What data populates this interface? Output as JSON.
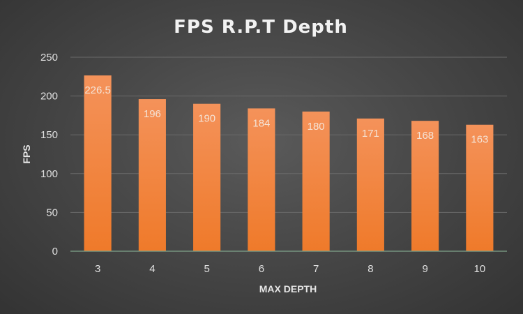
{
  "chart_data": {
    "type": "bar",
    "title": "FPS R.P.T Depth",
    "xlabel": "MAX DEPTH",
    "ylabel": "FPS",
    "categories": [
      "3",
      "4",
      "5",
      "6",
      "7",
      "8",
      "9",
      "10"
    ],
    "values": [
      226.5,
      196,
      190,
      184,
      180,
      171,
      168,
      163
    ],
    "data_labels": [
      "226.5",
      "196",
      "190",
      "184",
      "180",
      "171",
      "168",
      "163"
    ],
    "yticks": [
      0,
      50,
      100,
      150,
      200,
      250
    ],
    "ylim": [
      0,
      250
    ],
    "grid": true,
    "legend": "none",
    "bar_color": "#ef7a2a",
    "bar_color_top": "#f4925a"
  }
}
